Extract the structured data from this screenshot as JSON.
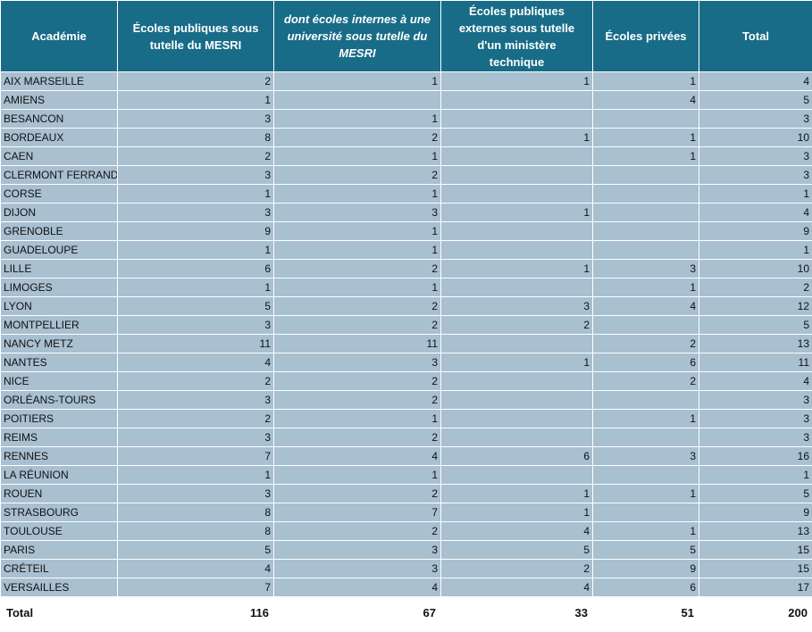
{
  "table": {
    "header": [
      "Académie",
      "Écoles publiques  sous tutelle du MESRI",
      "dont écoles internes à une université sous tutelle du MESRI",
      "Écoles publiques externes sous tutelle d'un ministère technique",
      "Écoles privées",
      "Total"
    ],
    "rows": [
      [
        "AIX MARSEILLE",
        2,
        1,
        1,
        1,
        4
      ],
      [
        "AMIENS",
        1,
        null,
        null,
        4,
        5
      ],
      [
        "BESANCON",
        3,
        1,
        null,
        null,
        3
      ],
      [
        "BORDEAUX",
        8,
        2,
        1,
        1,
        10
      ],
      [
        "CAEN",
        2,
        1,
        null,
        1,
        3
      ],
      [
        "CLERMONT FERRAND",
        3,
        2,
        null,
        null,
        3
      ],
      [
        "CORSE",
        1,
        1,
        null,
        null,
        1
      ],
      [
        "DIJON",
        3,
        3,
        1,
        null,
        4
      ],
      [
        "GRENOBLE",
        9,
        1,
        null,
        null,
        9
      ],
      [
        "GUADELOUPE",
        1,
        1,
        null,
        null,
        1
      ],
      [
        "LILLE",
        6,
        2,
        1,
        3,
        10
      ],
      [
        "LIMOGES",
        1,
        1,
        null,
        1,
        2
      ],
      [
        "LYON",
        5,
        2,
        3,
        4,
        12
      ],
      [
        "MONTPELLIER",
        3,
        2,
        2,
        null,
        5
      ],
      [
        "NANCY METZ",
        11,
        11,
        null,
        2,
        13
      ],
      [
        "NANTES",
        4,
        3,
        1,
        6,
        11
      ],
      [
        "NICE",
        2,
        2,
        null,
        2,
        4
      ],
      [
        "ORLÉANS-TOURS",
        3,
        2,
        null,
        null,
        3
      ],
      [
        "POITIERS",
        2,
        1,
        null,
        1,
        3
      ],
      [
        "REIMS",
        3,
        2,
        null,
        null,
        3
      ],
      [
        "RENNES",
        7,
        4,
        6,
        3,
        16
      ],
      [
        "LA RÉUNION",
        1,
        1,
        null,
        null,
        1
      ],
      [
        "ROUEN",
        3,
        2,
        1,
        1,
        5
      ],
      [
        "STRASBOURG",
        8,
        7,
        1,
        null,
        9
      ],
      [
        "TOULOUSE",
        8,
        2,
        4,
        1,
        13
      ],
      [
        "PARIS",
        5,
        3,
        5,
        5,
        15
      ],
      [
        "CRÉTEIL",
        4,
        3,
        2,
        9,
        15
      ],
      [
        "VERSAILLES",
        7,
        4,
        4,
        6,
        17
      ]
    ],
    "total": [
      "Total",
      116,
      67,
      33,
      51,
      200
    ]
  }
}
